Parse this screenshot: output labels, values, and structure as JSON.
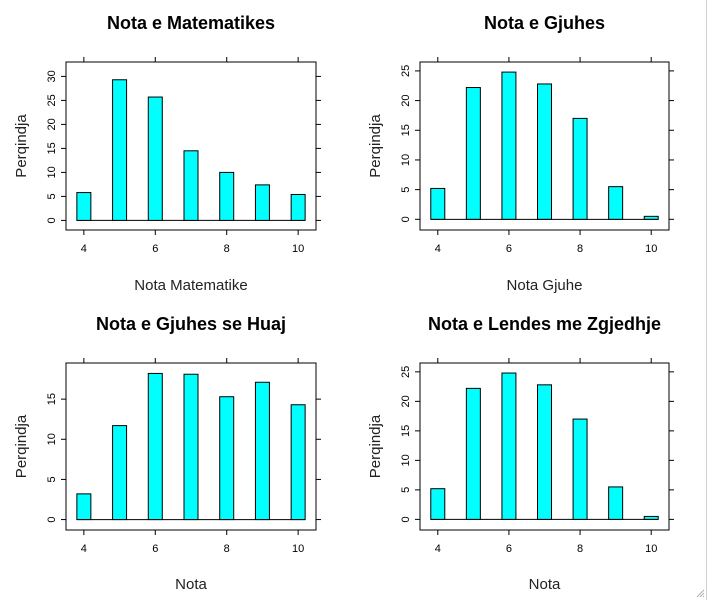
{
  "colors": {
    "bar_fill": "#00ffff",
    "bar_stroke": "#000000",
    "background": "#ffffff"
  },
  "chart_data": [
    {
      "type": "bar",
      "title": "Nota e Matematikes",
      "xlabel": "Nota Matematike",
      "ylabel": "Perqindja",
      "x": [
        4,
        5,
        6,
        7,
        8,
        9,
        10
      ],
      "values": [
        5.8,
        29.3,
        25.7,
        14.5,
        10,
        7.4,
        5.4
      ],
      "xlim": [
        3.5,
        10.5
      ],
      "ylim": [
        -2,
        33
      ],
      "xticks": [
        4,
        6,
        8,
        10
      ],
      "yticks": [
        0,
        5,
        10,
        15,
        20,
        25,
        30
      ]
    },
    {
      "type": "bar",
      "title": "Nota e Gjuhes",
      "xlabel": "Nota Gjuhe",
      "ylabel": "Perqindja",
      "x": [
        4,
        5,
        6,
        7,
        8,
        9,
        10
      ],
      "values": [
        5.2,
        22.2,
        24.8,
        22.8,
        17,
        5.5,
        0.5
      ],
      "xlim": [
        3.5,
        10.5
      ],
      "ylim": [
        -1.8,
        26.5
      ],
      "xticks": [
        4,
        6,
        8,
        10
      ],
      "yticks": [
        0,
        5,
        10,
        15,
        20,
        25
      ]
    },
    {
      "type": "bar",
      "title": "Nota e Gjuhes se Huaj",
      "xlabel": "Nota",
      "ylabel": "Perqindja",
      "x": [
        4,
        5,
        6,
        7,
        8,
        9,
        10
      ],
      "values": [
        3.2,
        11.7,
        18.2,
        18.1,
        15.3,
        17.1,
        14.3
      ],
      "xlim": [
        3.5,
        10.5
      ],
      "ylim": [
        -1.3,
        19.5
      ],
      "xticks": [
        4,
        6,
        8,
        10
      ],
      "yticks": [
        0,
        5,
        10,
        15
      ]
    },
    {
      "type": "bar",
      "title": "Nota e Lendes me Zgjedhje",
      "xlabel": "Nota",
      "ylabel": "Perqindja",
      "x": [
        4,
        5,
        6,
        7,
        8,
        9,
        10
      ],
      "values": [
        5.2,
        22.2,
        24.8,
        22.8,
        17,
        5.5,
        0.5
      ],
      "xlim": [
        3.5,
        10.5
      ],
      "ylim": [
        -1.8,
        26.5
      ],
      "xticks": [
        4,
        6,
        8,
        10
      ],
      "yticks": [
        0,
        5,
        10,
        15,
        20,
        25
      ]
    }
  ]
}
